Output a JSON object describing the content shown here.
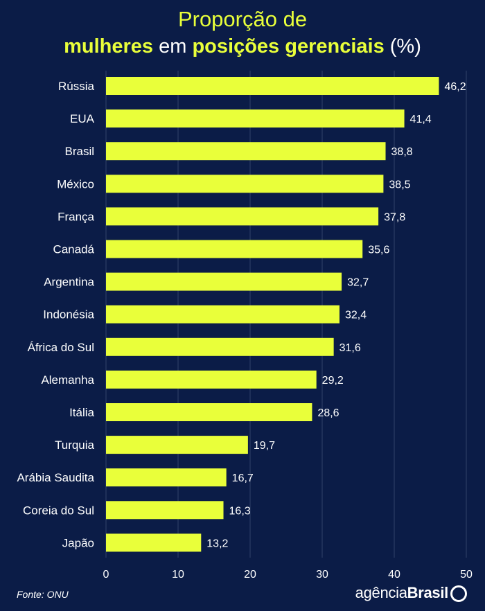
{
  "header": {
    "line1": "Proporção de",
    "line2_part1": "mulheres",
    "line2_part2": " em ",
    "line2_part3": "posições gerenciais",
    "line2_part4": " (%)"
  },
  "footer": {
    "source": "Fonte: ONU",
    "brand_part1": "agência",
    "brand_part2": "Brasil"
  },
  "colors": {
    "background": "#0b1c47",
    "bar": "#e9ff3a",
    "grid": "#2a3a63",
    "text": "#ffffff"
  },
  "chart_data": {
    "type": "bar",
    "orientation": "horizontal",
    "title": "Proporção de mulheres em posições gerenciais (%)",
    "categories": [
      "Rússia",
      "EUA",
      "Brasil",
      "México",
      "França",
      "Canadá",
      "Argentina",
      "Indonésia",
      "África do Sul",
      "Alemanha",
      "Itália",
      "Turquia",
      "Arábia Saudita",
      "Coreia do Sul",
      "Japão"
    ],
    "values": [
      46.2,
      41.4,
      38.8,
      38.5,
      37.8,
      35.6,
      32.7,
      32.4,
      31.6,
      29.2,
      28.6,
      19.7,
      16.7,
      16.3,
      13.2
    ],
    "value_labels": [
      "46,2",
      "41,4",
      "38,8",
      "38,5",
      "37,8",
      "35,6",
      "32,7",
      "32,4",
      "31,6",
      "29,2",
      "28,6",
      "19,7",
      "16,7",
      "16,3",
      "13,2"
    ],
    "xlim": [
      0,
      50
    ],
    "xticks": [
      0,
      10,
      20,
      30,
      40,
      50
    ],
    "xtick_labels": [
      "0",
      "10",
      "20",
      "30",
      "40",
      "50"
    ],
    "xlabel": "",
    "ylabel": "",
    "grid": true
  }
}
